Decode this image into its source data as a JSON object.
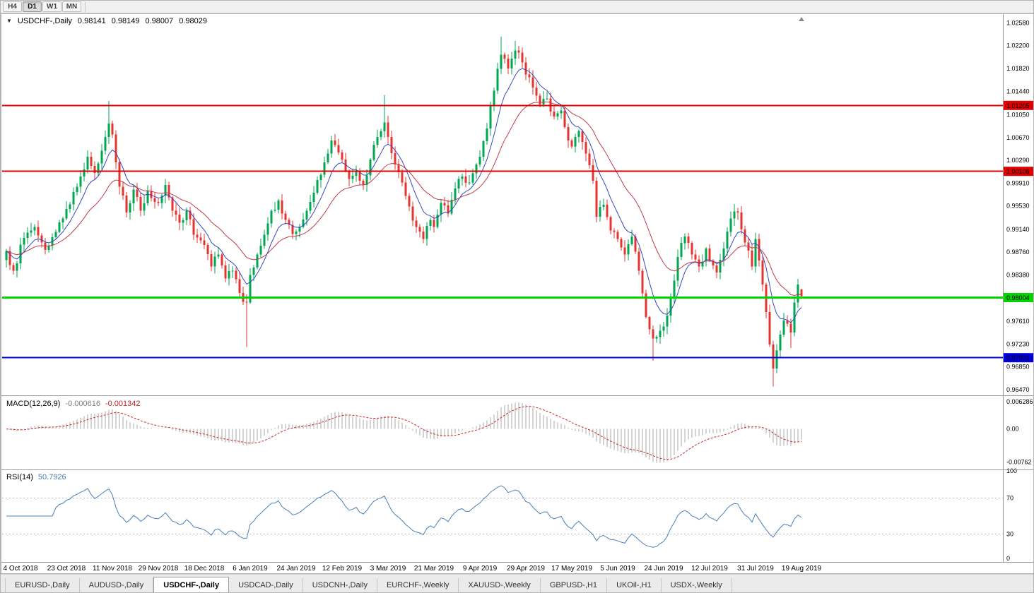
{
  "toolbar": {
    "timeframes": [
      "H4",
      "D1",
      "W1",
      "MN"
    ],
    "active_timeframe": 1
  },
  "chart": {
    "symbol_period": "USDCHF-,Daily",
    "ohlc": {
      "open": "0.98141",
      "high": "0.98149",
      "low": "0.98007",
      "close": "0.98029"
    }
  },
  "main_pane": {
    "domain": [
      0.9641,
      1.0269
    ],
    "y_labels": [
      "1.02580",
      "1.02200",
      "1.01820",
      "1.01440",
      "1.01050",
      "1.00670",
      "1.00290",
      "0.99910",
      "0.99530",
      "0.99140",
      "0.98760",
      "0.98380",
      "0.97610",
      "0.97230",
      "0.96850",
      "0.96470"
    ],
    "levels": [
      {
        "value": 1.01205,
        "color": "#e10000",
        "tag": "1.01205",
        "width": 2
      },
      {
        "value": 1.00106,
        "color": "#e10000",
        "tag": "1.00106",
        "width": 2
      },
      {
        "value": 0.98004,
        "color": "#00d500",
        "tag": "0.98004",
        "width": 3
      },
      {
        "value": 0.97001,
        "color": "#0000d9",
        "tag": "0.97001",
        "width": 2
      }
    ]
  },
  "macd": {
    "name": "MACD(12,26,9)",
    "value_main": "-0.000616",
    "value_signal": "-0.001342",
    "domain": [
      -0.009,
      0.0071
    ],
    "y_labels": [
      {
        "text": "0.006286",
        "value": 0.006286
      },
      {
        "text": "0.00",
        "value": 0
      },
      {
        "text": "-0.00762",
        "value": -0.00762
      }
    ]
  },
  "rsi": {
    "name": "RSI(14)",
    "value": "50.7926",
    "domain": [
      0,
      100
    ],
    "levels": [
      70,
      30
    ],
    "y_labels": [
      "100",
      "70",
      "30",
      "0"
    ]
  },
  "x_axis": {
    "dates": [
      {
        "label": "4 Oct 2018",
        "index": 4
      },
      {
        "label": "23 Oct 2018",
        "index": 17
      },
      {
        "label": "11 Nov 2018",
        "index": 30
      },
      {
        "label": "29 Nov 2018",
        "index": 43
      },
      {
        "label": "18 Dec 2018",
        "index": 56
      },
      {
        "label": "6 Jan 2019",
        "index": 69
      },
      {
        "label": "24 Jan 2019",
        "index": 82
      },
      {
        "label": "12 Feb 2019",
        "index": 95
      },
      {
        "label": "3 Mar 2019",
        "index": 108
      },
      {
        "label": "21 Mar 2019",
        "index": 121
      },
      {
        "label": "9 Apr 2019",
        "index": 134
      },
      {
        "label": "29 Apr 2019",
        "index": 147
      },
      {
        "label": "17 May 2019",
        "index": 160
      },
      {
        "label": "5 Jun 2019",
        "index": 173
      },
      {
        "label": "24 Jun 2019",
        "index": 186
      },
      {
        "label": "12 Jul 2019",
        "index": 199
      },
      {
        "label": "31 Jul 2019",
        "index": 212
      },
      {
        "label": "19 Aug 2019",
        "index": 225
      }
    ]
  },
  "tabs": {
    "active": 2,
    "items": [
      "EURUSD-,Daily",
      "AUDUSD-,Daily",
      "USDCHF-,Daily",
      "USDCAD-,Daily",
      "USDCNH-,Daily",
      "EURCHF-,Weekly",
      "XAUUSD-,Weekly",
      "GBPUSD-,H1",
      "UKOil-,H1",
      "USDX-,Weekly"
    ]
  },
  "chart_data": {
    "type": "candlestick",
    "symbol": "USDCHF",
    "timeframe": "Daily",
    "count": 226,
    "seed": 7,
    "noise": 0.0014,
    "wick": 0.0011,
    "ma_fast": 8,
    "ma_slow": 22,
    "macd_params": [
      12,
      26,
      9
    ],
    "rsi_period": 14,
    "last_candle": [
      0.98141,
      0.98149,
      0.98007,
      0.98029
    ],
    "waypoints": [
      [
        0,
        0.9878
      ],
      [
        2,
        0.9845
      ],
      [
        5,
        0.99
      ],
      [
        8,
        0.9918
      ],
      [
        11,
        0.988
      ],
      [
        14,
        0.991
      ],
      [
        17,
        0.9948
      ],
      [
        20,
        0.9985
      ],
      [
        23,
        1.0035
      ],
      [
        25,
        1.0008
      ],
      [
        27,
        1.0045
      ],
      [
        29,
        1.009
      ],
      [
        30,
        1.0072
      ],
      [
        32,
        0.9985
      ],
      [
        34,
        0.9942
      ],
      [
        36,
        0.998
      ],
      [
        38,
        0.9945
      ],
      [
        40,
        0.9978
      ],
      [
        43,
        0.9958
      ],
      [
        45,
        0.9988
      ],
      [
        47,
        0.9945
      ],
      [
        49,
        0.9925
      ],
      [
        51,
        0.9945
      ],
      [
        53,
        0.9905
      ],
      [
        56,
        0.9888
      ],
      [
        58,
        0.9852
      ],
      [
        60,
        0.9872
      ],
      [
        62,
        0.9832
      ],
      [
        64,
        0.9845
      ],
      [
        66,
        0.9808
      ],
      [
        68,
        0.9792
      ],
      [
        69,
        0.9838
      ],
      [
        71,
        0.9872
      ],
      [
        73,
        0.9905
      ],
      [
        75,
        0.9945
      ],
      [
        77,
        0.9962
      ],
      [
        79,
        0.993
      ],
      [
        81,
        0.9906
      ],
      [
        83,
        0.9918
      ],
      [
        85,
        0.9945
      ],
      [
        87,
        0.9975
      ],
      [
        89,
        1.0005
      ],
      [
        91,
        1.004
      ],
      [
        92,
        1.0062
      ],
      [
        94,
        1.0042
      ],
      [
        95,
        1.003
      ],
      [
        97,
        0.9998
      ],
      [
        99,
        1.0012
      ],
      [
        101,
        0.9988
      ],
      [
        103,
        1.003
      ],
      [
        105,
        1.0068
      ],
      [
        107,
        1.0092
      ],
      [
        108,
        1.0068
      ],
      [
        110,
        1.0022
      ],
      [
        112,
        0.9992
      ],
      [
        114,
        0.9952
      ],
      [
        116,
        0.9918
      ],
      [
        118,
        0.9898
      ],
      [
        120,
        0.993
      ],
      [
        121,
        0.9918
      ],
      [
        123,
        0.9958
      ],
      [
        125,
        0.994
      ],
      [
        127,
        0.9982
      ],
      [
        129,
        1.0002
      ],
      [
        131,
        0.9992
      ],
      [
        133,
        1.0022
      ],
      [
        134,
        1.0035
      ],
      [
        136,
        1.0082
      ],
      [
        138,
        1.0145
      ],
      [
        140,
        1.0205
      ],
      [
        142,
        1.0182
      ],
      [
        144,
        1.0212
      ],
      [
        146,
        1.0192
      ],
      [
        147,
        1.0172
      ],
      [
        149,
        1.015
      ],
      [
        151,
        1.0122
      ],
      [
        153,
        1.0132
      ],
      [
        155,
        1.0102
      ],
      [
        157,
        1.0112
      ],
      [
        159,
        1.0062
      ],
      [
        160,
        1.0052
      ],
      [
        162,
        1.0078
      ],
      [
        164,
        1.004
      ],
      [
        166,
        0.9995
      ],
      [
        167,
        0.9935
      ],
      [
        169,
        0.9955
      ],
      [
        171,
        0.9912
      ],
      [
        173,
        0.9898
      ],
      [
        175,
        0.9872
      ],
      [
        177,
        0.9902
      ],
      [
        179,
        0.9845
      ],
      [
        181,
        0.9768
      ],
      [
        183,
        0.9732
      ],
      [
        185,
        0.9745
      ],
      [
        186,
        0.9752
      ],
      [
        188,
        0.9802
      ],
      [
        190,
        0.9868
      ],
      [
        192,
        0.9902
      ],
      [
        194,
        0.9872
      ],
      [
        196,
        0.9852
      ],
      [
        198,
        0.9882
      ],
      [
        199,
        0.9862
      ],
      [
        201,
        0.9842
      ],
      [
        203,
        0.9882
      ],
      [
        205,
        0.9932
      ],
      [
        207,
        0.9942
      ],
      [
        209,
        0.9892
      ],
      [
        211,
        0.9852
      ],
      [
        212,
        0.9898
      ],
      [
        214,
        0.9822
      ],
      [
        216,
        0.9722
      ],
      [
        217,
        0.9682
      ],
      [
        218,
        0.9712
      ],
      [
        220,
        0.9762
      ],
      [
        222,
        0.9742
      ],
      [
        223,
        0.9792
      ],
      [
        224,
        0.9822
      ],
      [
        225,
        0.98029
      ]
    ],
    "spikes": [
      {
        "i": 29,
        "high": 1.0128
      },
      {
        "i": 68,
        "low": 0.9718
      },
      {
        "i": 107,
        "high": 1.0138
      },
      {
        "i": 140,
        "high": 1.0235
      },
      {
        "i": 144,
        "high": 1.0228
      },
      {
        "i": 183,
        "low": 0.9695
      },
      {
        "i": 217,
        "low": 0.9652
      },
      {
        "i": 222,
        "low": 0.9716
      }
    ],
    "colors": {
      "up": "#00a651",
      "down": "#e43430",
      "ma_fast": "#3349c4",
      "ma_slow": "#c23a4a",
      "hist": "#a8a8a8",
      "signal": "#c62828",
      "rsi": "#4a7fb5"
    }
  }
}
